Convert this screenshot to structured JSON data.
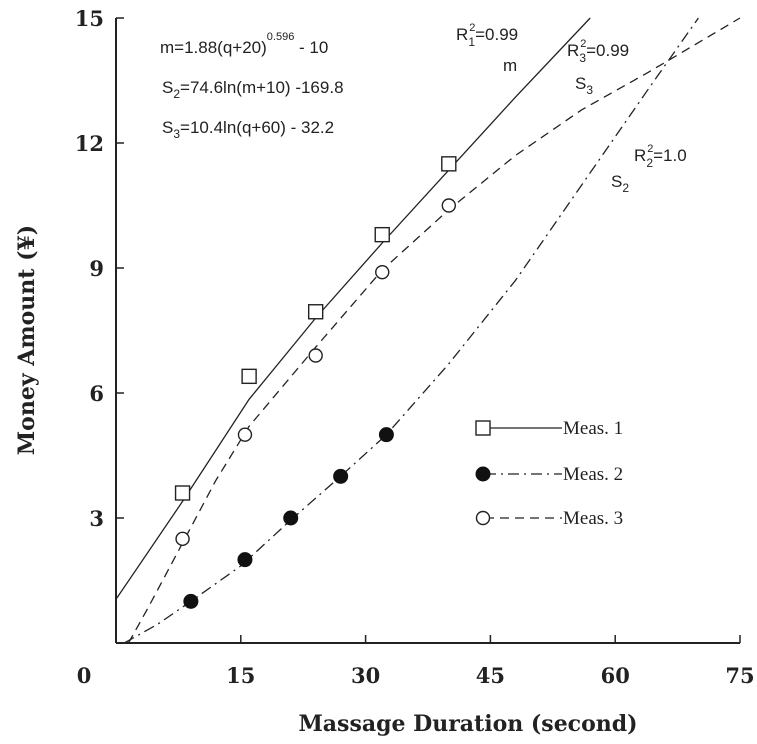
{
  "chart_data": {
    "type": "scatter",
    "xlabel": "Massage Duration (second)",
    "ylabel": "Money Amount (¥)",
    "xlim": [
      0,
      75
    ],
    "ylim": [
      0,
      15
    ],
    "xticks": [
      {
        "value": 0,
        "label": "0"
      },
      {
        "value": 15,
        "label": "15"
      },
      {
        "value": 30,
        "label": "30"
      },
      {
        "value": 45,
        "label": "45"
      },
      {
        "value": 60,
        "label": "60"
      },
      {
        "value": 75,
        "label": "75"
      }
    ],
    "yticks": [
      {
        "value": 3,
        "label": "3"
      },
      {
        "value": 6,
        "label": "6"
      },
      {
        "value": 9,
        "label": "9"
      },
      {
        "value": 12,
        "label": "12"
      },
      {
        "value": 15,
        "label": "15"
      }
    ],
    "grid": false,
    "series": [
      {
        "name": "Meas. 1",
        "marker": "open-square",
        "line": "solid",
        "x": [
          8,
          16,
          24,
          32,
          40
        ],
        "y": [
          3.6,
          6.4,
          7.95,
          9.8,
          11.5
        ]
      },
      {
        "name": "Meas. 2",
        "marker": "filled-circle",
        "line": "dash-dot",
        "x": [
          9,
          15.5,
          21,
          27,
          32.5
        ],
        "y": [
          1.0,
          2.0,
          3.0,
          4.0,
          5.0
        ]
      },
      {
        "name": "Meas. 3",
        "marker": "open-circle",
        "line": "dashed",
        "x": [
          8,
          15.5,
          24,
          32,
          40
        ],
        "y": [
          2.5,
          5.0,
          6.9,
          8.9,
          10.5
        ]
      }
    ],
    "fit_curves": [
      {
        "series": "Meas. 1",
        "style": "solid",
        "x": [
          0,
          8,
          16,
          24,
          32,
          40,
          48,
          57
        ],
        "y": [
          1.05,
          3.4,
          5.85,
          7.8,
          9.6,
          11.35,
          13.1,
          15.0
        ]
      },
      {
        "series": "Meas. 3",
        "style": "dashed",
        "x": [
          1.5,
          4,
          8,
          12,
          16,
          24,
          32,
          40,
          48,
          56,
          64,
          75
        ],
        "y": [
          0,
          0.9,
          2.4,
          3.9,
          5.2,
          7.1,
          8.95,
          10.4,
          11.7,
          12.8,
          13.7,
          15.0
        ]
      },
      {
        "series": "Meas. 2",
        "style": "dash-dot",
        "x": [
          1,
          5,
          9,
          15,
          21,
          27,
          32.5,
          40,
          48,
          56,
          64,
          70
        ],
        "y": [
          0,
          0.45,
          1.0,
          1.85,
          2.95,
          4.0,
          5.0,
          6.7,
          8.7,
          11.0,
          13.3,
          15.0
        ]
      }
    ],
    "equations": [
      {
        "base": "m=1.88(q+20)",
        "sup": "0.596",
        "tail": "  -  10"
      },
      {
        "pre": "S",
        "sub": "2",
        "post": "=74.6ln(m+10) -169.8"
      },
      {
        "pre": "S",
        "sub": "3",
        "post": "=10.4ln(q+60) - 32.2"
      }
    ],
    "annotations": [
      {
        "r_text": "R",
        "r_sup": "2",
        "r_sub": "1",
        "value": "=0.99",
        "curve": "m"
      },
      {
        "r_text": "R",
        "r_sup": "2",
        "r_sub": "3",
        "value": "=0.99",
        "curve_pre": "S",
        "curve_sub": "3"
      },
      {
        "r_text": "R",
        "r_sup": "2",
        "r_sub": "2",
        "value": "=1.0",
        "curve_pre": "S",
        "curve_sub": "2"
      }
    ],
    "legend": {
      "placement": "inside-bottom-right"
    }
  }
}
